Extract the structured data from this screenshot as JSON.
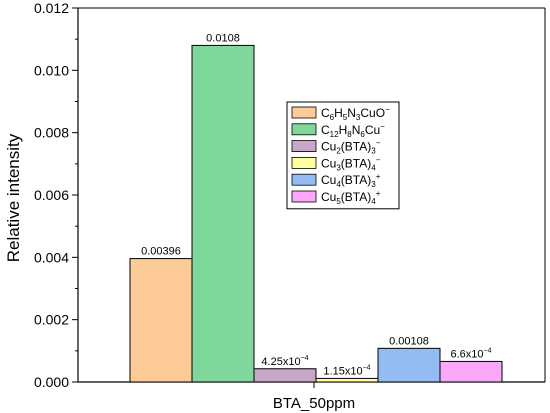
{
  "chart_data": {
    "type": "bar",
    "xlabel": "BTA_50ppm",
    "ylabel": "Relative intensity",
    "ylim": [
      0,
      0.012
    ],
    "y_ticks": [
      "0.000",
      "0.002",
      "0.004",
      "0.006",
      "0.008",
      "0.010",
      "0.012"
    ],
    "grid": false,
    "legend_position": "center-right",
    "series": [
      {
        "name": "C6H5N3CuO−",
        "name_parts": [
          [
            "C",
            "n"
          ],
          [
            "6",
            "sub"
          ],
          [
            "H",
            "n"
          ],
          [
            "5",
            "sub"
          ],
          [
            "N",
            "n"
          ],
          [
            "3",
            "sub"
          ],
          [
            "CuO",
            "n"
          ],
          [
            "−",
            "sup"
          ]
        ],
        "value": 0.00396,
        "label": "0.00396",
        "color": "#FDCB96"
      },
      {
        "name": "C12H8N6Cu−",
        "name_parts": [
          [
            "C",
            "n"
          ],
          [
            "12",
            "sub"
          ],
          [
            "H",
            "n"
          ],
          [
            "8",
            "sub"
          ],
          [
            "N",
            "n"
          ],
          [
            "6",
            "sub"
          ],
          [
            "Cu",
            "n"
          ],
          [
            "−",
            "sup"
          ]
        ],
        "value": 0.0108,
        "label": "0.0108",
        "color": "#7ED89B"
      },
      {
        "name": "Cu2(BTA)3−",
        "name_parts": [
          [
            "Cu",
            "n"
          ],
          [
            "2",
            "sub"
          ],
          [
            "(BTA)",
            "n"
          ],
          [
            "3",
            "sub"
          ],
          [
            "−",
            "sup"
          ]
        ],
        "value": 0.000425,
        "label_parts": [
          [
            "4.25x10",
            "n"
          ],
          [
            "−4",
            "sup"
          ]
        ],
        "color": "#C8A8C8"
      },
      {
        "name": "Cu3(BTA)4−",
        "name_parts": [
          [
            "Cu",
            "n"
          ],
          [
            "3",
            "sub"
          ],
          [
            "(BTA)",
            "n"
          ],
          [
            "4",
            "sub"
          ],
          [
            "−",
            "sup"
          ]
        ],
        "value": 0.000115,
        "label_parts": [
          [
            "1.15x10",
            "n"
          ],
          [
            "−4",
            "sup"
          ]
        ],
        "color": "#FFFF9E"
      },
      {
        "name": "Cu4(BTA)3+",
        "name_parts": [
          [
            "Cu",
            "n"
          ],
          [
            "4",
            "sub"
          ],
          [
            "(BTA)",
            "n"
          ],
          [
            "3",
            "sub"
          ],
          [
            "+",
            "sup"
          ]
        ],
        "value": 0.00108,
        "label": "0.00108",
        "color": "#93BCF5"
      },
      {
        "name": "Cu5(BTA)4+",
        "name_parts": [
          [
            "Cu",
            "n"
          ],
          [
            "5",
            "sub"
          ],
          [
            "(BTA)",
            "n"
          ],
          [
            "4",
            "sub"
          ],
          [
            "+",
            "sup"
          ]
        ],
        "value": 0.00066,
        "label_parts": [
          [
            "6.6x10",
            "n"
          ],
          [
            "−4",
            "sup"
          ]
        ],
        "color": "#FBA8FB"
      }
    ]
  }
}
